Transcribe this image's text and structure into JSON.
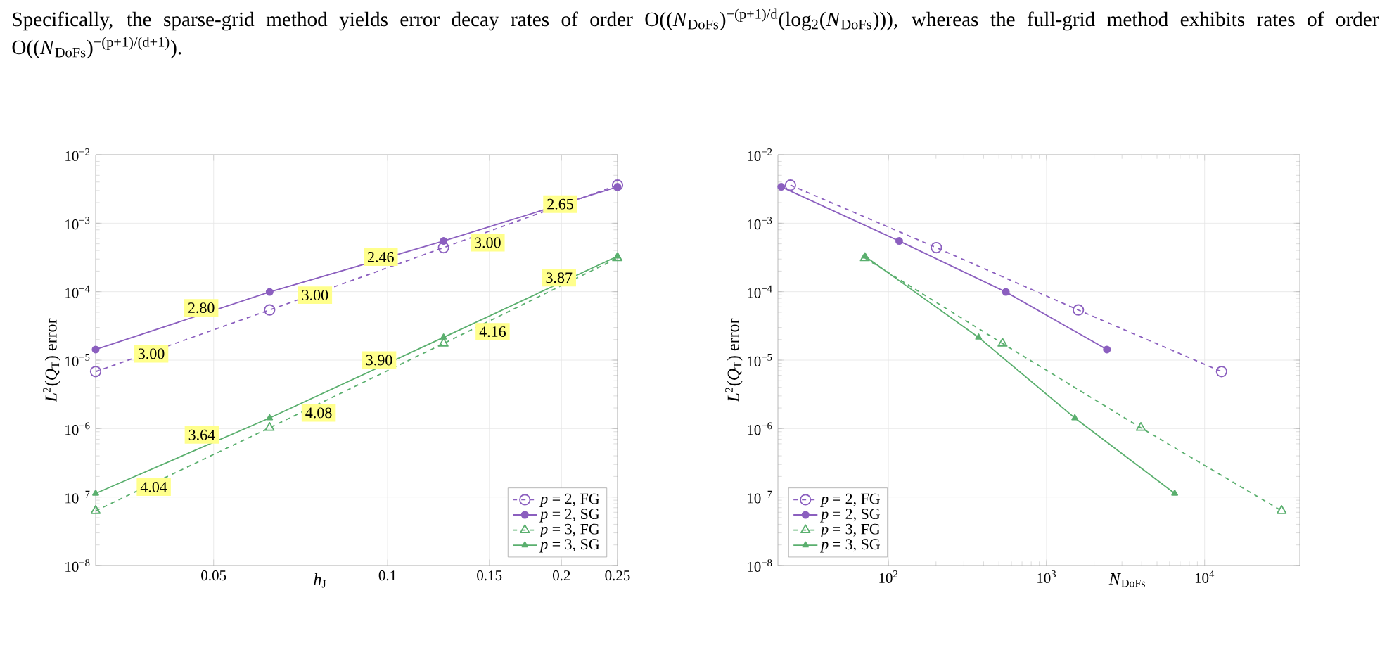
{
  "chart_data": [
    {
      "type": "other",
      "annotations": [
        "Specifically, the sparse-grid method yields error decay rates of order O((*N*$_{DoFs}$)$^{−(p+1)/d}$(log$_{2}$(*N*$_{DoFs}$))), whereas the full-grid method exhibits rates of order O((*N*$_{DoFs}$)$^{−(p+1)/(d+1)}$)."
      ]
    },
    {
      "type": "line",
      "xlabel": "*h*$_{J}$",
      "ylabel": "*L*$^{2}$(*Q*$_{T}$) error",
      "log": "xy",
      "grid": true,
      "legend": "bottom right",
      "x": [
        0.03125,
        0.0625,
        0.125,
        0.25
      ],
      "xlim": [
        0.03125,
        0.25
      ],
      "xticks": [
        0.05,
        0.1,
        0.15,
        0.2,
        0.25
      ],
      "ylim": [
        1e-08,
        0.01
      ],
      "yticks": [
        {
          "value": 1e-08,
          "label": "10$^{−8}$"
        },
        {
          "value": 1e-07,
          "label": "10$^{−7}$"
        },
        {
          "value": 1e-06,
          "label": "10$^{−6}$"
        },
        {
          "value": 1e-05,
          "label": "10$^{−5}$"
        },
        {
          "value": 0.0001,
          "label": "10$^{−4}$"
        },
        {
          "value": 0.001,
          "label": "10$^{−3}$"
        },
        {
          "value": 0.01,
          "label": "10$^{−2}$"
        }
      ],
      "series": [
        {
          "name": "*p* = 2, FG",
          "color": "#8b5fbf",
          "marker": "circle",
          "line_style": "dashed",
          "values": [
            6.8e-06,
            5.4e-05,
            0.00044,
            0.0036
          ]
        },
        {
          "name": "*p* = 2, SG",
          "color": "#8b5fbf",
          "marker": "circle",
          "line_style": "solid",
          "values": [
            1.43e-05,
            9.9e-05,
            0.00055,
            0.0034
          ]
        },
        {
          "name": "*p* = 3, FG",
          "color": "#5aaf6e",
          "marker": "triangle",
          "line_style": "dashed",
          "values": [
            6.3e-08,
            1.03e-06,
            1.75e-05,
            0.00031
          ]
        },
        {
          "name": "*p* = 3, SG",
          "color": "#5aaf6e",
          "marker": "triangle",
          "line_style": "solid",
          "values": [
            1.13e-07,
            1.43e-06,
            2.15e-05,
            0.00033
          ]
        }
      ],
      "annotations": [
        {
          "text": "2.65",
          "x": 0.199,
          "y": 0.0019
        },
        {
          "text": "3.00",
          "x": 0.149,
          "y": 0.00052
        },
        {
          "text": "2.46",
          "x": 0.0973,
          "y": 0.00032
        },
        {
          "text": "3.00",
          "x": 0.0749,
          "y": 8.9e-05
        },
        {
          "text": "2.80",
          "x": 0.0476,
          "y": 5.8e-05
        },
        {
          "text": "3.00",
          "x": 0.039,
          "y": 1.24e-05
        },
        {
          "text": "3.87",
          "x": 0.198,
          "y": 0.00016
        },
        {
          "text": "4.16",
          "x": 0.152,
          "y": 2.6e-05
        },
        {
          "text": "3.90",
          "x": 0.0967,
          "y": 1e-05
        },
        {
          "text": "4.08",
          "x": 0.076,
          "y": 1.7e-06
        },
        {
          "text": "3.64",
          "x": 0.0477,
          "y": 8.1e-07
        },
        {
          "text": "4.04",
          "x": 0.0394,
          "y": 1.4e-07
        }
      ]
    },
    {
      "type": "line",
      "xlabel": "*N*$_{DoFs}$",
      "ylabel": "*L*$^{2}$(*Q*$_{T}$) error",
      "log": "xy",
      "grid": true,
      "legend": "bottom left",
      "xlim": [
        20,
        40000
      ],
      "xticks": [
        {
          "value": 100,
          "label": "10$^{2}$"
        },
        {
          "value": 1000,
          "label": "10$^{3}$"
        },
        {
          "value": 10000,
          "label": "10$^{4}$"
        }
      ],
      "ylim": [
        1e-08,
        0.01
      ],
      "yticks": [
        {
          "value": 1e-08,
          "label": "10$^{−8}$"
        },
        {
          "value": 1e-07,
          "label": "10$^{−7}$"
        },
        {
          "value": 1e-06,
          "label": "10$^{−6}$"
        },
        {
          "value": 1e-05,
          "label": "10$^{−5}$"
        },
        {
          "value": 0.0001,
          "label": "10$^{−4}$"
        },
        {
          "value": 0.001,
          "label": "10$^{−3}$"
        },
        {
          "value": 0.01,
          "label": "10$^{−2}$"
        }
      ],
      "series": [
        {
          "name": "*p* = 2, FG",
          "color": "#8b5fbf",
          "marker": "circle",
          "line_style": "dashed",
          "x": [
            24,
            201,
            1590,
            12800
          ],
          "values": [
            0.0036,
            0.00044,
            5.4e-05,
            6.8e-06
          ]
        },
        {
          "name": "*p* = 2, SG",
          "color": "#8b5fbf",
          "marker": "circle",
          "line_style": "solid",
          "x": [
            21,
            117,
            553,
            2410
          ],
          "values": [
            0.0034,
            0.00055,
            9.9e-05,
            1.43e-05
          ]
        },
        {
          "name": "*p* = 3, FG",
          "color": "#5aaf6e",
          "marker": "triangle",
          "line_style": "dashed",
          "x": [
            71,
            527,
            3950,
            30700
          ],
          "values": [
            0.00031,
            1.75e-05,
            1.03e-06,
            6.3e-08
          ]
        },
        {
          "name": "*p* = 3, SG",
          "color": "#5aaf6e",
          "marker": "triangle",
          "line_style": "solid",
          "x": [
            71,
            372,
            1510,
            6470
          ],
          "values": [
            0.00033,
            2.15e-05,
            1.43e-06,
            1.13e-07
          ]
        }
      ]
    }
  ]
}
